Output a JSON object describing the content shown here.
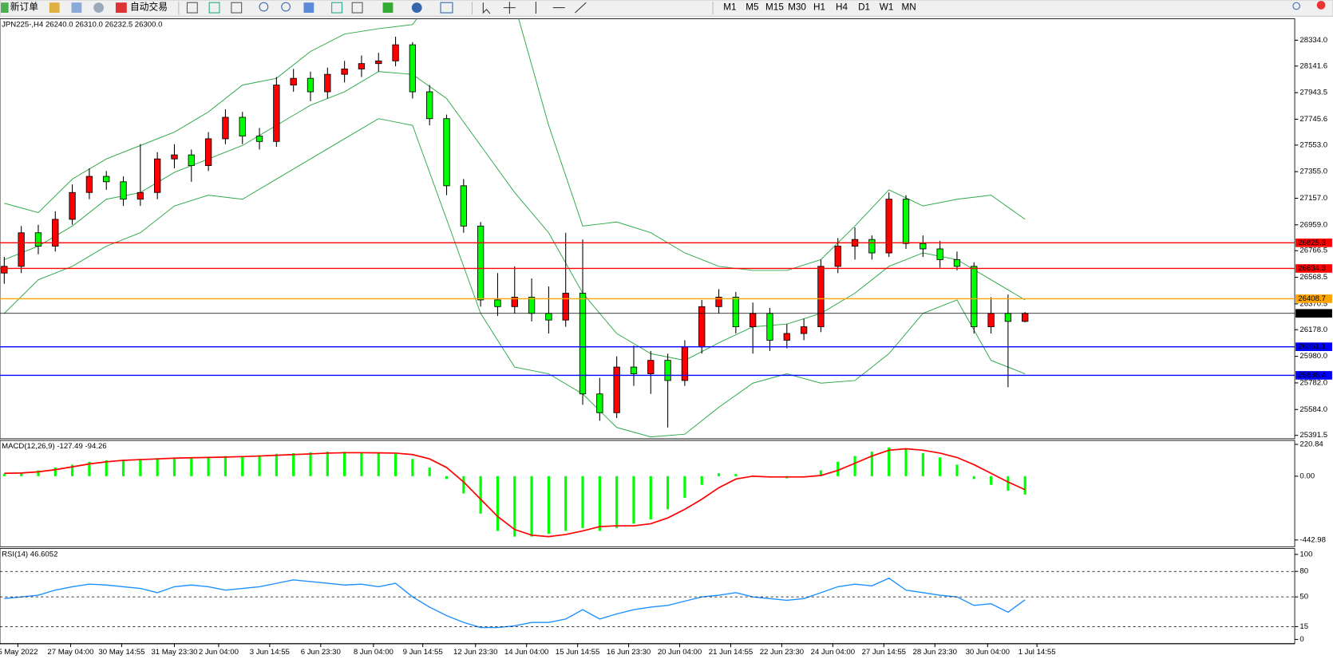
{
  "toolbar": {
    "new_order": "新订单",
    "auto_trade": "自动交易",
    "timeframes": [
      "M1",
      "M5",
      "M15",
      "M30",
      "H1",
      "H4",
      "D1",
      "W1",
      "MN"
    ]
  },
  "chart_data": [
    {
      "type": "candlestick",
      "title": "JPN225-,H4  26240.0 26310.0 26232.5 26300.0",
      "up_color": "#ff0000",
      "down_color": "#00ff00",
      "ylim": [
        25366,
        28494
      ],
      "yticks": [
        {
          "value": 28334,
          "label": "28334.0"
        },
        28141.6,
        27943.5,
        27745.6,
        {
          "value": 27553,
          "label": "27553.0"
        },
        {
          "value": 27355,
          "label": "27355.0"
        },
        {
          "value": 27157,
          "label": "27157.0"
        },
        {
          "value": 26959,
          "label": "26959.0"
        },
        26766.5,
        26568.5,
        26370.5,
        {
          "value": 26178,
          "label": "26178.0"
        },
        {
          "value": 25980,
          "label": "25980.0"
        },
        {
          "value": 25782,
          "label": "25782.0"
        },
        {
          "value": 25584,
          "label": "25584.0"
        },
        25391.5
      ],
      "xticks": [
        {
          "value": 0.8,
          "label": "5 May 2022"
        },
        {
          "value": 3.9,
          "label": "27 May 04:00"
        },
        {
          "value": 6.9,
          "label": "30 May 14:55"
        },
        {
          "value": 10,
          "label": "31 May 23:30"
        },
        {
          "value": 12.6,
          "label": "2 Jun 04:00"
        },
        {
          "value": 15.6,
          "label": "3 Jun 14:55"
        },
        {
          "value": 18.6,
          "label": "6 Jun 23:30"
        },
        {
          "value": 21.7,
          "label": "8 Jun 04:00"
        },
        {
          "value": 24.6,
          "label": "9 Jun 14:55"
        },
        {
          "value": 27.7,
          "label": "12 Jun 23:30"
        },
        {
          "value": 30.7,
          "label": "14 Jun 04:00"
        },
        {
          "value": 33.7,
          "label": "15 Jun 14:55"
        },
        {
          "value": 36.7,
          "label": "16 Jun 23:30"
        },
        {
          "value": 39.7,
          "label": "20 Jun 04:00"
        },
        {
          "value": 42.7,
          "label": "21 Jun 14:55"
        },
        {
          "value": 45.7,
          "label": "22 Jun 23:30"
        },
        {
          "value": 48.7,
          "label": "24 Jun 04:00"
        },
        {
          "value": 51.7,
          "label": "27 Jun 14:55"
        },
        {
          "value": 54.7,
          "label": "28 Jun 23:30"
        },
        {
          "value": 57.8,
          "label": "30 Jun 04:00"
        },
        {
          "value": 60.7,
          "label": "1 Jul 14:55"
        }
      ],
      "candles": [
        [
          26600,
          26720,
          26520,
          26650
        ],
        [
          26650,
          26950,
          26600,
          26900
        ],
        [
          26900,
          26960,
          26740,
          26800
        ],
        [
          26800,
          27060,
          26760,
          27000
        ],
        [
          27000,
          27260,
          26960,
          27200
        ],
        [
          27200,
          27380,
          27150,
          27320
        ],
        [
          27320,
          27360,
          27220,
          27280
        ],
        [
          27280,
          27320,
          27100,
          27150
        ],
        [
          27150,
          27560,
          27100,
          27200
        ],
        [
          27200,
          27500,
          27150,
          27450
        ],
        [
          27450,
          27560,
          27380,
          27480
        ],
        [
          27480,
          27520,
          27280,
          27400
        ],
        [
          27400,
          27650,
          27360,
          27600
        ],
        [
          27600,
          27820,
          27560,
          27760
        ],
        [
          27760,
          27800,
          27560,
          27620
        ],
        [
          27620,
          27680,
          27520,
          27580
        ],
        [
          27580,
          28060,
          27540,
          28000
        ],
        [
          28000,
          28120,
          27950,
          28050
        ],
        [
          28050,
          28100,
          27880,
          27950
        ],
        [
          27950,
          28130,
          27900,
          28080
        ],
        [
          28080,
          28180,
          28020,
          28120
        ],
        [
          28120,
          28220,
          28060,
          28160
        ],
        [
          28160,
          28240,
          28100,
          28180
        ],
        [
          28180,
          28360,
          28140,
          28300
        ],
        [
          28300,
          28320,
          27900,
          27950
        ],
        [
          27950,
          28000,
          27700,
          27750
        ],
        [
          27750,
          27780,
          27180,
          27250
        ],
        [
          27250,
          27300,
          26900,
          26950
        ],
        [
          26950,
          26980,
          26350,
          26400
        ],
        [
          26400,
          26600,
          26280,
          26350
        ],
        [
          26350,
          26650,
          26300,
          26420
        ],
        [
          26420,
          26560,
          26240,
          26300
        ],
        [
          26300,
          26500,
          26150,
          26250
        ],
        [
          26250,
          26900,
          26200,
          26450
        ],
        [
          26450,
          26850,
          25620,
          25700
        ],
        [
          25700,
          25820,
          25500,
          25560
        ],
        [
          25560,
          25980,
          25520,
          25900
        ],
        [
          25900,
          26060,
          25760,
          25850
        ],
        [
          25850,
          26020,
          25700,
          25950
        ],
        [
          25950,
          26000,
          25450,
          25800
        ],
        [
          25800,
          26100,
          25760,
          26050
        ],
        [
          26050,
          26400,
          26000,
          26350
        ],
        [
          26350,
          26480,
          26300,
          26420
        ],
        [
          26420,
          26460,
          26150,
          26200
        ],
        [
          26200,
          26380,
          26000,
          26300
        ],
        [
          26300,
          26340,
          26020,
          26100
        ],
        [
          26100,
          26220,
          26040,
          26150
        ],
        [
          26150,
          26260,
          26100,
          26200
        ],
        [
          26200,
          26700,
          26160,
          26650
        ],
        [
          26650,
          26860,
          26600,
          26800
        ],
        [
          26800,
          26940,
          26700,
          26850
        ],
        [
          26850,
          26880,
          26700,
          26750
        ],
        [
          26750,
          27200,
          26720,
          27150
        ],
        [
          27150,
          27180,
          26780,
          26820
        ],
        [
          26820,
          26880,
          26720,
          26780
        ],
        [
          26780,
          26840,
          26640,
          26700
        ],
        [
          26700,
          26760,
          26620,
          26650
        ],
        [
          26650,
          26680,
          26150,
          26200
        ],
        [
          26200,
          26420,
          26150,
          26300
        ],
        [
          26300,
          26440,
          25750,
          26240
        ],
        [
          26240,
          26310,
          26232.5,
          26300
        ]
      ],
      "bands": {
        "x": [
          0,
          2,
          4,
          6,
          8,
          10,
          12,
          14,
          16,
          18,
          20,
          22,
          24,
          26,
          28,
          30,
          32,
          34,
          36,
          38,
          40,
          42,
          44,
          46,
          48,
          50,
          52,
          54,
          56,
          58,
          60
        ],
        "color": "#2ca84a",
        "series": [
          {
            "values": [
              27120,
              27050,
              27300,
              27450,
              27550,
              27650,
              27800,
              28000,
              28050,
              28250,
              28380,
              28420,
              28450,
              28800,
              29000,
              28600,
              27700,
              26950,
              26980,
              26900,
              26750,
              26650,
              26620,
              26620,
              26700,
              26950,
              27220,
              27100,
              27150,
              27180,
              27000
            ]
          },
          {
            "values": [
              26700,
              26800,
              26950,
              27150,
              27200,
              27350,
              27450,
              27550,
              27700,
              27850,
              27950,
              28100,
              28080,
              27900,
              27550,
              27200,
              26900,
              26450,
              26150,
              26000,
              25950,
              26080,
              26200,
              26220,
              26300,
              26450,
              26650,
              26750,
              26700,
              26550,
              26400
            ]
          },
          {
            "values": [
              26300,
              26550,
              26650,
              26800,
              26900,
              27100,
              27180,
              27150,
              27300,
              27450,
              27600,
              27750,
              27700,
              27000,
              26300,
              25900,
              25850,
              25700,
              25450,
              25380,
              25400,
              25600,
              25780,
              25850,
              25780,
              25800,
              26000,
              26300,
              26400,
              25950,
              25850
            ]
          }
        ]
      },
      "levels": [
        {
          "value": 26825.3,
          "color": "#ff0000"
        },
        {
          "value": 26634.3,
          "color": "#ff0000"
        },
        {
          "value": 26408.7,
          "color": "#ffa500"
        },
        {
          "value": 26300,
          "label": "26300.0",
          "color": "#000000"
        },
        {
          "value": 26051.1,
          "color": "#0000ff"
        },
        {
          "value": 25838.4,
          "color": "#0000ff"
        }
      ]
    },
    {
      "type": "macd",
      "title": "MACD(12,26,9) -127.49 -94.26",
      "ylim": [
        -490,
        248
      ],
      "yticks": [
        220.84,
        {
          "value": 0,
          "label": "0.00"
        },
        -442.98
      ],
      "series": [
        {
          "color": "#00ff00",
          "values": [
            15,
            25,
            40,
            60,
            80,
            100,
            110,
            115,
            120,
            125,
            130,
            130,
            135,
            140,
            140,
            145,
            155,
            160,
            165,
            170,
            170,
            165,
            160,
            155,
            120,
            60,
            -20,
            -120,
            -260,
            -380,
            -420,
            -420,
            -400,
            -380,
            -360,
            -380,
            -360,
            -330,
            -300,
            -230,
            -150,
            -60,
            20,
            15,
            5,
            -10,
            -15,
            -5,
            40,
            100,
            140,
            170,
            200,
            185,
            160,
            130,
            80,
            -20,
            -60,
            -100,
            -127.49
          ]
        },
        {
          "color": "#ff0000",
          "values": [
            20,
            22,
            30,
            45,
            65,
            85,
            100,
            110,
            115,
            120,
            125,
            128,
            130,
            133,
            136,
            140,
            145,
            150,
            155,
            160,
            163,
            163,
            162,
            160,
            150,
            120,
            60,
            -40,
            -160,
            -280,
            -370,
            -410,
            -420,
            -405,
            -380,
            -350,
            -345,
            -345,
            -330,
            -290,
            -230,
            -160,
            -80,
            -20,
            0,
            -5,
            -5,
            -5,
            5,
            40,
            90,
            140,
            180,
            190,
            180,
            160,
            130,
            80,
            20,
            -40,
            -94.26
          ]
        }
      ]
    },
    {
      "type": "line",
      "title": "RSI(14) 46.6052",
      "color": "#1e90ff",
      "ylim": [
        -5,
        107
      ],
      "yticks": [
        100,
        80,
        50,
        15,
        0
      ],
      "levels": [
        80,
        50,
        15
      ],
      "values": [
        48,
        50,
        52,
        58,
        62,
        65,
        64,
        62,
        60,
        55,
        62,
        64,
        62,
        58,
        60,
        62,
        66,
        70,
        68,
        66,
        64,
        65,
        62,
        66,
        50,
        38,
        28,
        20,
        14,
        14,
        16,
        20,
        20,
        24,
        35,
        24,
        30,
        35,
        38,
        40,
        45,
        50,
        52,
        55,
        50,
        48,
        46,
        48,
        55,
        62,
        65,
        63,
        72,
        58,
        55,
        52,
        50,
        40,
        42,
        32,
        46.6052
      ]
    }
  ]
}
